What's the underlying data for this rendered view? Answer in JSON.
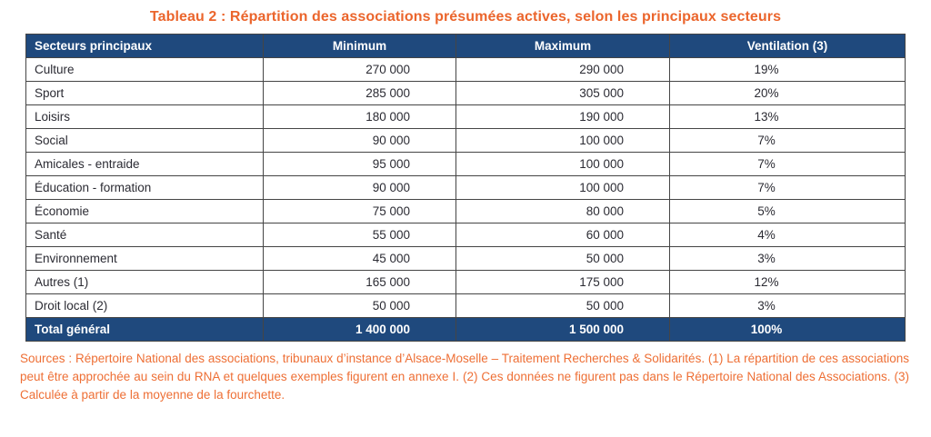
{
  "title": "Tableau 2 : Répartition des associations présumées actives, selon les principaux secteurs",
  "table": {
    "headers": [
      "Secteurs principaux",
      "Minimum",
      "Maximum",
      "Ventilation (3)"
    ],
    "rows": [
      {
        "sector": "Culture",
        "min": "270 000",
        "max": "290 000",
        "ventilation": "19%"
      },
      {
        "sector": "Sport",
        "min": "285 000",
        "max": "305 000",
        "ventilation": "20%"
      },
      {
        "sector": "Loisirs",
        "min": "180 000",
        "max": "190 000",
        "ventilation": "13%"
      },
      {
        "sector": "Social",
        "min": "90 000",
        "max": "100 000",
        "ventilation": "7%"
      },
      {
        "sector": "Amicales - entraide",
        "min": "95 000",
        "max": "100 000",
        "ventilation": "7%"
      },
      {
        "sector": "Éducation - formation",
        "min": "90 000",
        "max": "100 000",
        "ventilation": "7%"
      },
      {
        "sector": "Économie",
        "min": "75 000",
        "max": "80 000",
        "ventilation": "5%"
      },
      {
        "sector": "Santé",
        "min": "55 000",
        "max": "60 000",
        "ventilation": "4%"
      },
      {
        "sector": "Environnement",
        "min": "45 000",
        "max": "50 000",
        "ventilation": "3%"
      },
      {
        "sector": "Autres (1)",
        "min": "165 000",
        "max": "175 000",
        "ventilation": "12%"
      },
      {
        "sector": "Droit local (2)",
        "min": "50 000",
        "max": "50 000",
        "ventilation": "3%"
      }
    ],
    "total": {
      "sector": "Total général",
      "min": "1 400 000",
      "max": "1 500 000",
      "ventilation": "100%"
    }
  },
  "footnote": "Sources : Répertoire National des associations, tribunaux d’instance d’Alsace-Moselle – Traitement Recherches & Solidarités. (1) La répartition de ces associations peut être approchée au sein du RNA et quelques exemples figurent en annexe I.  (2) Ces données ne figurent pas dans le Répertoire National des Associations. (3) Calculée à partir de la moyenne de la fourchette.",
  "colors": {
    "header_bg": "#1f497d",
    "title_orange": "#eb652c",
    "footnote_orange": "#ee6f35",
    "border_gray": "#454545"
  }
}
